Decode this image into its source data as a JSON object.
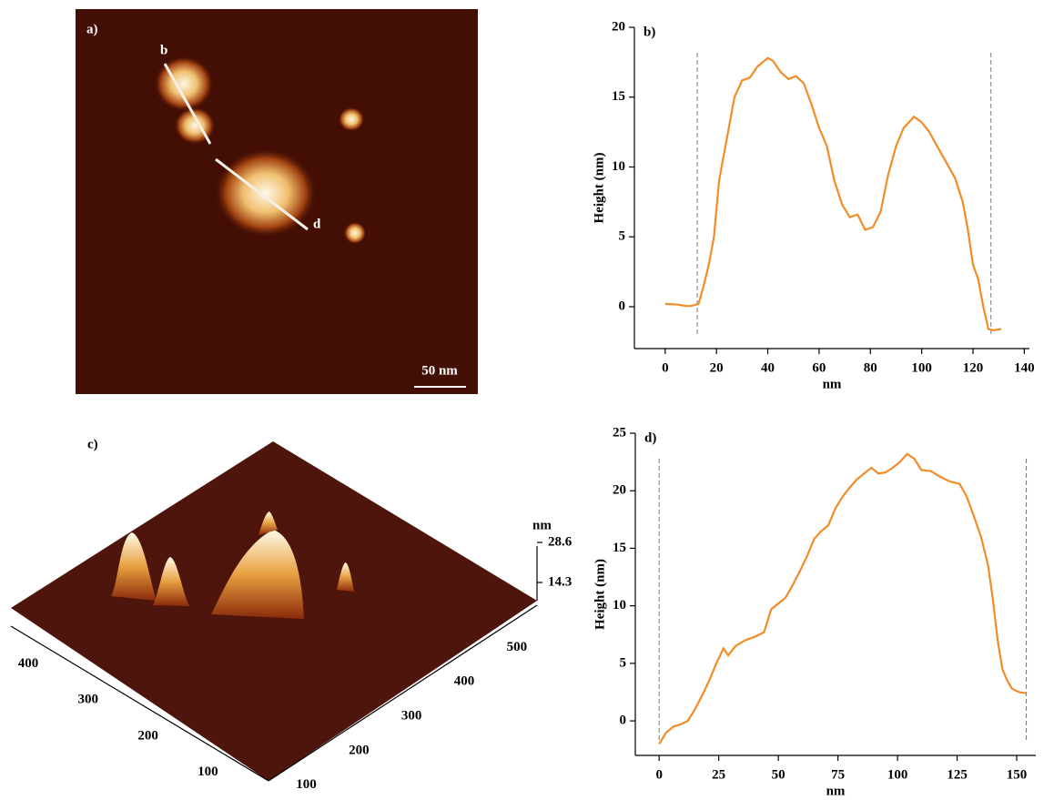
{
  "chart_data": [
    {
      "type": "line",
      "label": "b)",
      "x_label": "nm",
      "y_label": "Height (nm)",
      "x": [
        0,
        5,
        8,
        10,
        13,
        15,
        17,
        19,
        21,
        23,
        25,
        27,
        30,
        33,
        36,
        40,
        42,
        45,
        48,
        51,
        54,
        57,
        60,
        63,
        66,
        69,
        72,
        75,
        78,
        81,
        84,
        87,
        90,
        93,
        97,
        100,
        103,
        106,
        110,
        113,
        116,
        118,
        120,
        122,
        124,
        126,
        128,
        131
      ],
      "series": [
        {
          "color": "#f28c28",
          "values": [
            0.2,
            0.15,
            0.05,
            0.05,
            0.2,
            1.5,
            3,
            5,
            9,
            11,
            13,
            15,
            16.2,
            16.4,
            17.2,
            17.8,
            17.6,
            16.8,
            16.3,
            16.5,
            16,
            14.5,
            12.8,
            11.5,
            9,
            7.3,
            6.4,
            6.6,
            5.5,
            5.7,
            6.8,
            9.5,
            11.5,
            12.8,
            13.6,
            13.2,
            12.5,
            11.5,
            10.2,
            9.2,
            7.5,
            5.5,
            3,
            2,
            0,
            -1.6,
            -1.7,
            -1.6
          ]
        }
      ],
      "markers": [
        12.5,
        127
      ],
      "xlim": [
        -12,
        142
      ],
      "xticks": [
        0,
        20,
        40,
        60,
        80,
        100,
        120,
        140
      ],
      "ylim": [
        -3,
        20
      ],
      "yticks": [
        0,
        5,
        10,
        15,
        20
      ]
    },
    {
      "type": "line",
      "label": "d)",
      "x_label": "nm",
      "y_label": "Height (nm)",
      "x": [
        0,
        3,
        6,
        9,
        12,
        15,
        18,
        21,
        24,
        27,
        29,
        32,
        36,
        40,
        44,
        47,
        50,
        53,
        56,
        59,
        62,
        65,
        68,
        71,
        74,
        77,
        80,
        83,
        86,
        89,
        92,
        95,
        98,
        101,
        104,
        107,
        110,
        114,
        118,
        122,
        126,
        129,
        132,
        135,
        138,
        140,
        142,
        144,
        146,
        148,
        151,
        154
      ],
      "series": [
        {
          "color": "#f28c28",
          "values": [
            -2,
            -1,
            -0.5,
            -0.3,
            0,
            1,
            2.2,
            3.5,
            5,
            6.3,
            5.7,
            6.5,
            7,
            7.3,
            7.7,
            9.7,
            10.2,
            10.7,
            11.8,
            13,
            14.3,
            15.8,
            16.5,
            17,
            18.5,
            19.5,
            20.3,
            21,
            21.5,
            22,
            21.5,
            21.6,
            22,
            22.5,
            23.2,
            22.8,
            21.8,
            21.7,
            21.2,
            20.8,
            20.6,
            19.5,
            17.8,
            16,
            13.5,
            10.5,
            7,
            4.5,
            3.5,
            2.8,
            2.5,
            2.4
          ]
        }
      ],
      "markers": [
        0,
        154
      ],
      "xlim": [
        -10,
        158
      ],
      "xticks": [
        0,
        25,
        50,
        75,
        100,
        125,
        150
      ],
      "ylim": [
        -3,
        25
      ],
      "yticks": [
        0,
        5,
        10,
        15,
        20,
        25
      ]
    }
  ],
  "images": {
    "a": {
      "label": "a)",
      "line_start": "b",
      "line_end": "d",
      "scale_bar": "50 nm"
    },
    "c": {
      "label": "c)",
      "z_unit": "nm",
      "z_ticks": [
        "28.6",
        "14.3"
      ],
      "left_ticks": [
        "400",
        "300",
        "200",
        "100"
      ],
      "right_ticks": [
        "100",
        "200",
        "300",
        "400",
        "500"
      ]
    }
  }
}
